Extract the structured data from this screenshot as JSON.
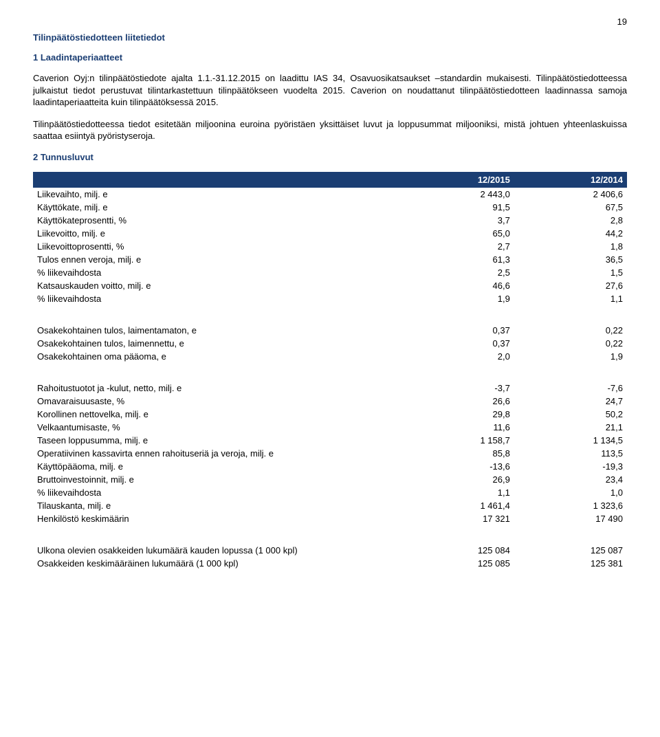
{
  "page_number": "19",
  "title1": "Tilinpäätöstiedotteen liitetiedot",
  "title2": "1 Laadintaperiaatteet",
  "para1": "Caverion Oyj:n tilinpäätöstiedote ajalta 1.1.-31.12.2015 on laadittu IAS 34, Osavuosikatsaukset –standardin mukaisesti. Tilinpäätöstiedotteessa julkaistut tiedot perustuvat tilintarkastettuun tilinpäätökseen vuodelta 2015. Caverion on noudattanut tilinpäätöstiedotteen laadinnassa samoja laadintaperiaatteita kuin tilinpäätöksessä 2015.",
  "para2": "Tilinpäätöstiedotteessa tiedot esitetään miljoonina euroina pyöristäen yksittäiset luvut ja loppusummat miljooniksi, mistä johtuen yhteenlaskuissa saattaa esiintyä pyöristyseroja.",
  "title3": "2 Tunnusluvut",
  "table": {
    "header": [
      "",
      "12/2015",
      "12/2014"
    ],
    "rows": [
      {
        "label": "Liikevaihto, milj. e",
        "v1": "2 443,0",
        "v2": "2 406,6"
      },
      {
        "label": "Käyttökate, milj. e",
        "v1": "91,5",
        "v2": "67,5"
      },
      {
        "label": "Käyttökateprosentti, %",
        "v1": "3,7",
        "v2": "2,8"
      },
      {
        "label": "Liikevoitto, milj. e",
        "v1": "65,0",
        "v2": "44,2"
      },
      {
        "label": "Liikevoittoprosentti, %",
        "v1": "2,7",
        "v2": "1,8"
      },
      {
        "label": "Tulos ennen veroja, milj. e",
        "v1": "61,3",
        "v2": "36,5"
      },
      {
        "label": "% liikevaihdosta",
        "v1": "2,5",
        "v2": "1,5"
      },
      {
        "label": "Katsauskauden voitto, milj. e",
        "v1": "46,6",
        "v2": "27,6"
      },
      {
        "label": "% liikevaihdosta",
        "v1": "1,9",
        "v2": "1,1"
      },
      {
        "sep": true
      },
      {
        "label": "Osakekohtainen tulos, laimentamaton, e",
        "v1": "0,37",
        "v2": "0,22"
      },
      {
        "label": "Osakekohtainen tulos, laimennettu, e",
        "v1": "0,37",
        "v2": "0,22"
      },
      {
        "label": "Osakekohtainen oma pääoma, e",
        "v1": "2,0",
        "v2": "1,9"
      },
      {
        "sep": true
      },
      {
        "label": "Rahoitustuotot ja -kulut, netto, milj. e",
        "v1": "-3,7",
        "v2": "-7,6"
      },
      {
        "label": "Omavaraisuusaste, %",
        "v1": "26,6",
        "v2": "24,7"
      },
      {
        "label": "Korollinen nettovelka, milj. e",
        "v1": "29,8",
        "v2": "50,2"
      },
      {
        "label": "Velkaantumisaste, %",
        "v1": "11,6",
        "v2": "21,1"
      },
      {
        "label": "Taseen loppusumma, milj. e",
        "v1": "1 158,7",
        "v2": "1 134,5"
      },
      {
        "label": "Operatiivinen kassavirta ennen rahoituseriä ja veroja, milj. e",
        "v1": "85,8",
        "v2": "113,5"
      },
      {
        "label": "Käyttöpääoma, milj. e",
        "v1": "-13,6",
        "v2": "-19,3"
      },
      {
        "label": "Bruttoinvestoinnit, milj. e",
        "v1": "26,9",
        "v2": "23,4"
      },
      {
        "label": "% liikevaihdosta",
        "v1": "1,1",
        "v2": "1,0"
      },
      {
        "label": "Tilauskanta, milj. e",
        "v1": "1 461,4",
        "v2": "1 323,6"
      },
      {
        "label": "Henkilöstö keskimäärin",
        "v1": "17 321",
        "v2": "17 490"
      },
      {
        "sep": true
      },
      {
        "label": "Ulkona olevien osakkeiden lukumäärä kauden lopussa (1 000 kpl)",
        "v1": "125 084",
        "v2": "125 087"
      },
      {
        "label": "Osakkeiden keskimääräinen lukumäärä (1 000 kpl)",
        "v1": "125 085",
        "v2": "125 381"
      }
    ]
  }
}
